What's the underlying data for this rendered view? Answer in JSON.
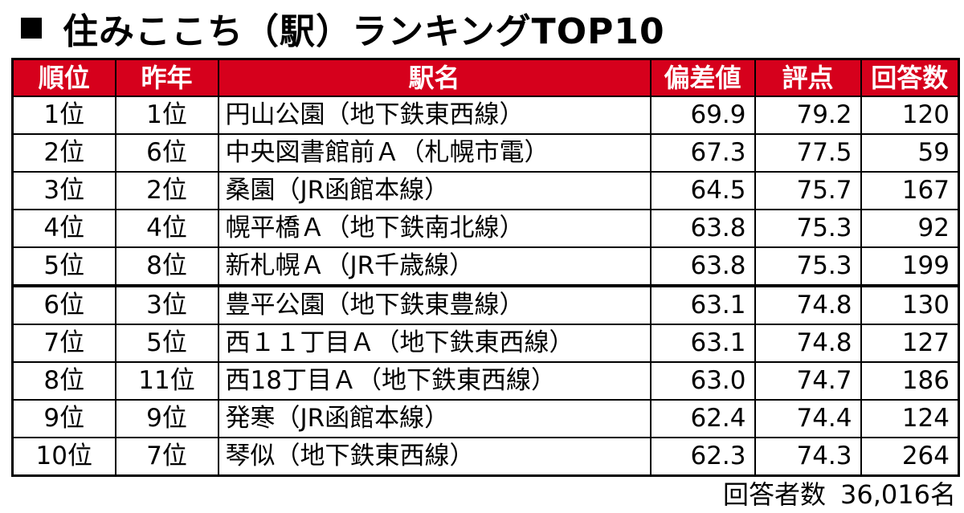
{
  "title": "住みここち（駅）ランキングTOP10",
  "headers": {
    "rank": "順位",
    "prev": "昨年",
    "station": "駅名",
    "deviation": "偏差値",
    "score": "評点",
    "responses": "回答数"
  },
  "rows": [
    {
      "rank": "1位",
      "prev": "1位",
      "station": "円山公園（地下鉄東西線）",
      "deviation": "69.9",
      "score": "79.2",
      "responses": "120"
    },
    {
      "rank": "2位",
      "prev": "6位",
      "station": "中央図書館前Ａ（札幌市電）",
      "deviation": "67.3",
      "score": "77.5",
      "responses": "59"
    },
    {
      "rank": "3位",
      "prev": "2位",
      "station": "桑園（JR函館本線）",
      "deviation": "64.5",
      "score": "75.7",
      "responses": "167"
    },
    {
      "rank": "4位",
      "prev": "4位",
      "station": "幌平橋Ａ（地下鉄南北線）",
      "deviation": "63.8",
      "score": "75.3",
      "responses": "92"
    },
    {
      "rank": "5位",
      "prev": "8位",
      "station": "新札幌Ａ（JR千歳線）",
      "deviation": "63.8",
      "score": "75.3",
      "responses": "199"
    },
    {
      "rank": "6位",
      "prev": "3位",
      "station": "豊平公園（地下鉄東豊線）",
      "deviation": "63.1",
      "score": "74.8",
      "responses": "130"
    },
    {
      "rank": "7位",
      "prev": "5位",
      "station": "西１１丁目Ａ（地下鉄東西線）",
      "deviation": "63.1",
      "score": "74.8",
      "responses": "127"
    },
    {
      "rank": "8位",
      "prev": "11位",
      "station": "西18丁目Ａ（地下鉄東西線）",
      "deviation": "63.0",
      "score": "74.7",
      "responses": "186"
    },
    {
      "rank": "9位",
      "prev": "9位",
      "station": "発寒（JR函館本線）",
      "deviation": "62.4",
      "score": "74.4",
      "responses": "124"
    },
    {
      "rank": "10位",
      "prev": "7位",
      "station": "琴似（地下鉄東西線）",
      "deviation": "62.3",
      "score": "74.3",
      "responses": "264"
    }
  ],
  "footer": {
    "label": "回答者数",
    "value": "36,016名"
  }
}
